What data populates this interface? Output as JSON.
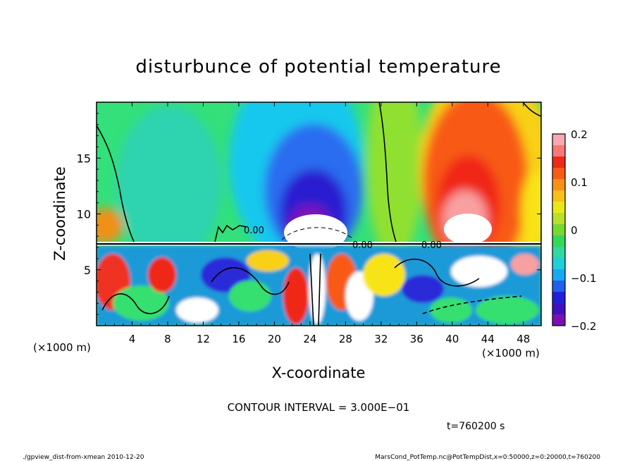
{
  "chart_data": {
    "type": "heatmap",
    "title": "disturbunce of potential temperature",
    "xlabel": "X-coordinate",
    "ylabel": "Z-coordinate",
    "x_unit": "(×1000 m)",
    "y_unit": "(×1000 m)",
    "x_ticks": [
      4,
      8,
      12,
      16,
      20,
      24,
      28,
      32,
      36,
      40,
      44,
      48
    ],
    "y_ticks": [
      5,
      10,
      15
    ],
    "xlim": [
      0,
      50
    ],
    "ylim": [
      0,
      20
    ],
    "colorbar": {
      "range": [
        -0.2,
        0.2
      ],
      "tick_labels": [
        "0.2",
        "0.1",
        "0",
        "−0.1",
        "−0.2"
      ],
      "tick_values": [
        0.2,
        0.1,
        0,
        -0.1,
        -0.2
      ]
    },
    "contour_label": "0.00",
    "contour_interval_text": "CONTOUR INTERVAL = 3.000E−01",
    "time_text": "t=760200 s"
  },
  "footer": {
    "left": "./gpview_dist-from-xmean  2010-12-20",
    "right": "MarsCond_PotTemp.nc@PotTempDist,x=0:50000,z=0:20000,t=760200"
  }
}
